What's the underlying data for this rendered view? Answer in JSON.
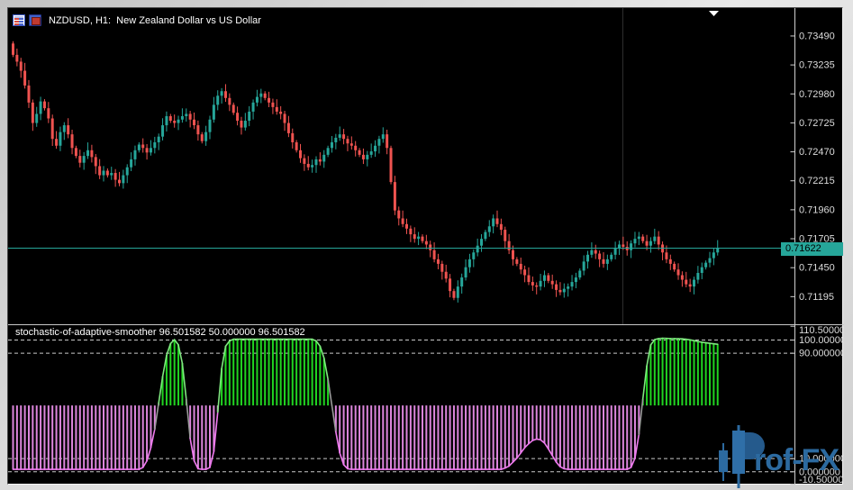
{
  "window": {
    "title": "NZDUSD, H1:  New Zealand Dollar vs US Dollar",
    "icons": [
      "chart-bars-icon",
      "indicator-window-icon"
    ]
  },
  "colors": {
    "background": "#000000",
    "frame": "#d6d6d6",
    "bull": "#26a69a",
    "bear": "#ef5350",
    "price_line": "#26a69a",
    "badge_bg": "#26a69a",
    "badge_text": "#000000",
    "axis_line": "#cfcfcf",
    "axis_text": "#dcdcdc",
    "grid_dash": "#c9c9c9",
    "separator": "#c8c8c8",
    "stoch_bar_up": "#21d421",
    "stoch_bar_down": "#dd86dd",
    "stoch_curve_up": "#7fe87f",
    "stoch_curve_down": "#f07af0",
    "stoch_curve_neutral": "#9a9a9a",
    "marker": "#ffffff",
    "watermark": "#2c6aa0",
    "watermark_dark": "#255a8c"
  },
  "price_axis": {
    "labels": [
      "0.73490",
      "0.73235",
      "0.72980",
      "0.72725",
      "0.72470",
      "0.72215",
      "0.71960",
      "0.71705",
      "0.71450",
      "0.71195"
    ],
    "values": [
      0.7349,
      0.73235,
      0.7298,
      0.72725,
      0.7247,
      0.72215,
      0.7196,
      0.71705,
      0.7145,
      0.71195
    ],
    "current": {
      "label": "0.71622",
      "value": 0.71622
    }
  },
  "indicator": {
    "label": "stochastic-of-adaptive-smoother 96.501582 50.000000 96.501582",
    "name": "stochastic-of-adaptive-smoother",
    "current_values": [
      96.501582,
      50.0,
      96.501582
    ],
    "axis_labels": [
      "110.500000",
      "100.000000",
      "90.000000",
      "10.000000",
      "0.000000",
      "-10.500000"
    ],
    "axis_values": [
      110.5,
      100,
      90,
      10,
      0,
      -10.5
    ],
    "dashed_levels": [
      100,
      90,
      10,
      0
    ],
    "baseline": 50,
    "range": [
      -10.5,
      110.5
    ]
  },
  "watermark": {
    "text": "Prof-FX",
    "text_after_logo": "rof-FX"
  },
  "chart_data": [
    {
      "type": "candlestick",
      "symbol": "NZDUSD",
      "timeframe": "H1",
      "title": "New Zealand Dollar vs US Dollar",
      "ylim": [
        0.7094,
        0.7373
      ],
      "first_open": 0.7342,
      "closes": [
        0.7332,
        0.7326,
        0.7318,
        0.7305,
        0.729,
        0.7272,
        0.728,
        0.7291,
        0.7285,
        0.7276,
        0.7258,
        0.7252,
        0.7264,
        0.727,
        0.7262,
        0.725,
        0.7243,
        0.7237,
        0.7243,
        0.7248,
        0.7242,
        0.7234,
        0.7226,
        0.723,
        0.7226,
        0.7228,
        0.7222,
        0.7219,
        0.7226,
        0.7233,
        0.724,
        0.7248,
        0.7253,
        0.725,
        0.7246,
        0.725,
        0.7255,
        0.726,
        0.727,
        0.7278,
        0.7274,
        0.7272,
        0.7275,
        0.7278,
        0.728,
        0.7275,
        0.727,
        0.7262,
        0.7256,
        0.7264,
        0.7275,
        0.7288,
        0.7296,
        0.73,
        0.7294,
        0.7288,
        0.7281,
        0.7274,
        0.7268,
        0.7274,
        0.7282,
        0.729,
        0.7295,
        0.7298,
        0.7294,
        0.729,
        0.7286,
        0.7282,
        0.728,
        0.7272,
        0.7263,
        0.7255,
        0.7248,
        0.7241,
        0.7236,
        0.7233,
        0.7235,
        0.724,
        0.7238,
        0.7244,
        0.725,
        0.7255,
        0.7259,
        0.7262,
        0.7258,
        0.7254,
        0.7252,
        0.7248,
        0.7244,
        0.724,
        0.7244,
        0.7247,
        0.7252,
        0.7258,
        0.7262,
        0.725,
        0.722,
        0.7195,
        0.7188,
        0.7183,
        0.7179,
        0.7174,
        0.717,
        0.7172,
        0.7168,
        0.7165,
        0.716,
        0.7152,
        0.7148,
        0.7141,
        0.7135,
        0.7124,
        0.7118,
        0.7128,
        0.7136,
        0.7145,
        0.7152,
        0.7158,
        0.7164,
        0.717,
        0.7176,
        0.7181,
        0.7188,
        0.7183,
        0.7178,
        0.7168,
        0.716,
        0.7152,
        0.7148,
        0.7143,
        0.7138,
        0.7132,
        0.7129,
        0.7128,
        0.7133,
        0.7138,
        0.7133,
        0.713,
        0.7125,
        0.7123,
        0.7126,
        0.7128,
        0.7132,
        0.7136,
        0.7142,
        0.715,
        0.7156,
        0.716,
        0.7157,
        0.7152,
        0.7148,
        0.7152,
        0.7156,
        0.7162,
        0.7165,
        0.7163,
        0.716,
        0.7166,
        0.717,
        0.7172,
        0.7168,
        0.7164,
        0.7168,
        0.7172,
        0.7165,
        0.7158,
        0.7152,
        0.7148,
        0.7143,
        0.7138,
        0.7134,
        0.713,
        0.7128,
        0.7134,
        0.714,
        0.7145,
        0.7149,
        0.7153,
        0.7158,
        0.7162
      ]
    },
    {
      "type": "bar",
      "name": "stochastic-of-adaptive-smoother",
      "ylim": [
        -10.5,
        110.5
      ],
      "baseline": 50,
      "values": [
        1.5,
        1.5,
        1.5,
        1.5,
        1.5,
        1.5,
        1.5,
        1.5,
        1.5,
        1.5,
        1.5,
        1.5,
        1.5,
        1.5,
        1.5,
        1.5,
        1.5,
        1.5,
        1.5,
        1.5,
        1.5,
        1.5,
        1.5,
        1.5,
        1.5,
        1.5,
        1.5,
        1.5,
        1.5,
        1.5,
        1.5,
        1.5,
        1.5,
        3,
        8,
        18,
        32,
        52,
        72,
        88,
        97,
        100,
        96,
        82,
        55,
        25,
        8,
        2,
        1.5,
        1.5,
        3,
        15,
        45,
        78,
        95,
        99,
        100.3,
        100.3,
        100.3,
        100.3,
        100.3,
        100.3,
        100.3,
        100.3,
        100.3,
        100.3,
        100.3,
        100.3,
        100.3,
        100.3,
        100.3,
        100.3,
        100.3,
        100.3,
        100.3,
        100.3,
        100.3,
        99,
        95,
        86,
        70,
        50,
        30,
        14,
        5,
        2,
        1.5,
        1.5,
        1.5,
        1.5,
        1.5,
        1.5,
        1.5,
        1.5,
        1.5,
        1.5,
        1.5,
        1.5,
        1.5,
        1.5,
        1.5,
        1.5,
        1.5,
        1.5,
        1.5,
        1.5,
        1.5,
        1.5,
        1.5,
        1.5,
        1.5,
        1.5,
        1.5,
        1.5,
        1.5,
        1.5,
        1.5,
        1.5,
        1.5,
        1.5,
        1.5,
        1.5,
        1.5,
        1.5,
        1.5,
        2.5,
        4,
        7,
        10,
        14,
        18,
        21,
        23.5,
        24.5,
        24,
        21.5,
        17,
        12,
        7,
        3.5,
        2,
        1.5,
        1.5,
        1.5,
        1.5,
        1.5,
        1.5,
        1.5,
        1.5,
        1.5,
        1.5,
        1.5,
        1.5,
        1.5,
        1.5,
        1.5,
        1.5,
        3,
        10,
        28,
        55,
        80,
        96,
        100,
        100.8,
        101,
        100.9,
        100.8,
        100.8,
        100.7,
        100.6,
        100.3,
        99.8,
        99.2,
        98.6,
        98,
        97.6,
        97.2,
        96.8,
        96.5
      ]
    }
  ]
}
